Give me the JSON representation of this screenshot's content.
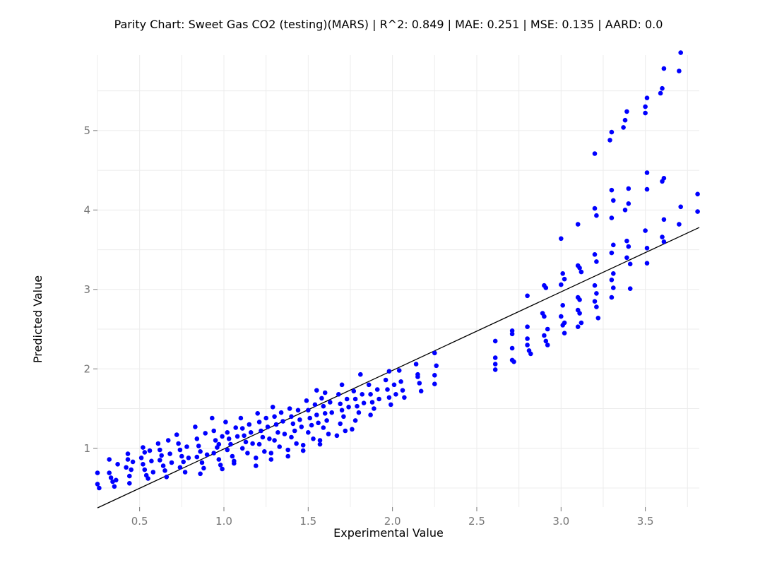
{
  "chart_data": {
    "type": "scatter",
    "title": "Parity Chart: Sweet Gas CO2 (testing)(MARS) | R^2: 0.849 | MAE: 0.251 | MSE: 0.135 | AARD: 0.0",
    "xlabel": "Experimental Value",
    "ylabel": "Predicted Value",
    "xlim": [
      0.25,
      3.82
    ],
    "ylim": [
      0.26,
      5.95
    ],
    "x_ticks": [
      0.5,
      1.0,
      1.5,
      2.0,
      2.5,
      3.0,
      3.5
    ],
    "x_tick_labels": [
      "0.5",
      "1.0",
      "1.5",
      "2.0",
      "2.5",
      "3.0",
      "3.5"
    ],
    "y_ticks": [
      1,
      2,
      3,
      4,
      5
    ],
    "y_tick_labels": [
      "1",
      "2",
      "3",
      "4",
      "5"
    ],
    "grid": true,
    "point_color": "#0000ff",
    "parity_line": {
      "from": [
        0.25,
        0.25
      ],
      "to": [
        3.82,
        3.78
      ],
      "color": "#000000"
    },
    "points": [
      [
        0.25,
        0.69
      ],
      [
        0.25,
        0.55
      ],
      [
        0.26,
        0.5
      ],
      [
        0.32,
        0.86
      ],
      [
        0.32,
        0.69
      ],
      [
        0.33,
        0.63
      ],
      [
        0.34,
        0.58
      ],
      [
        0.35,
        0.52
      ],
      [
        0.36,
        0.6
      ],
      [
        0.37,
        0.8
      ],
      [
        0.43,
        0.93
      ],
      [
        0.43,
        0.86
      ],
      [
        0.42,
        0.76
      ],
      [
        0.44,
        0.65
      ],
      [
        0.44,
        0.56
      ],
      [
        0.45,
        0.73
      ],
      [
        0.46,
        0.83
      ],
      [
        0.52,
        1.01
      ],
      [
        0.53,
        0.95
      ],
      [
        0.51,
        0.88
      ],
      [
        0.52,
        0.8
      ],
      [
        0.53,
        0.73
      ],
      [
        0.54,
        0.66
      ],
      [
        0.55,
        0.62
      ],
      [
        0.56,
        0.97
      ],
      [
        0.57,
        0.84
      ],
      [
        0.58,
        0.7
      ],
      [
        0.61,
        1.06
      ],
      [
        0.62,
        0.98
      ],
      [
        0.63,
        0.91
      ],
      [
        0.62,
        0.85
      ],
      [
        0.64,
        0.78
      ],
      [
        0.65,
        0.72
      ],
      [
        0.66,
        0.64
      ],
      [
        0.67,
        1.1
      ],
      [
        0.68,
        0.93
      ],
      [
        0.69,
        0.82
      ],
      [
        0.72,
        1.17
      ],
      [
        0.73,
        1.06
      ],
      [
        0.74,
        0.98
      ],
      [
        0.75,
        0.9
      ],
      [
        0.76,
        0.83
      ],
      [
        0.74,
        0.76
      ],
      [
        0.77,
        0.7
      ],
      [
        0.78,
        1.02
      ],
      [
        0.79,
        0.88
      ],
      [
        0.83,
        1.27
      ],
      [
        0.84,
        1.12
      ],
      [
        0.85,
        1.03
      ],
      [
        0.86,
        0.96
      ],
      [
        0.84,
        0.89
      ],
      [
        0.87,
        0.82
      ],
      [
        0.88,
        0.75
      ],
      [
        0.86,
        0.68
      ],
      [
        0.89,
        1.19
      ],
      [
        0.9,
        0.92
      ],
      [
        0.93,
        1.38
      ],
      [
        0.94,
        1.22
      ],
      [
        0.95,
        1.1
      ],
      [
        0.96,
        1.01
      ],
      [
        0.94,
        0.94
      ],
      [
        0.97,
        0.86
      ],
      [
        0.98,
        0.79
      ],
      [
        0.99,
        1.15
      ],
      [
        0.97,
        1.05
      ],
      [
        0.99,
        0.74
      ],
      [
        1.01,
        1.33
      ],
      [
        1.02,
        1.2
      ],
      [
        1.03,
        1.12
      ],
      [
        1.04,
        1.05
      ],
      [
        1.02,
        0.98
      ],
      [
        1.05,
        0.9
      ],
      [
        1.06,
        0.84
      ],
      [
        1.07,
        1.26
      ],
      [
        1.08,
        1.15
      ],
      [
        1.06,
        0.81
      ],
      [
        1.1,
        1.38
      ],
      [
        1.11,
        1.25
      ],
      [
        1.12,
        1.16
      ],
      [
        1.13,
        1.08
      ],
      [
        1.11,
        1.0
      ],
      [
        1.14,
        0.94
      ],
      [
        1.15,
        1.3
      ],
      [
        1.16,
        1.2
      ],
      [
        1.17,
        1.06
      ],
      [
        1.2,
        1.44
      ],
      [
        1.21,
        1.33
      ],
      [
        1.22,
        1.22
      ],
      [
        1.23,
        1.14
      ],
      [
        1.21,
        1.05
      ],
      [
        1.24,
        0.96
      ],
      [
        1.19,
        0.88
      ],
      [
        1.19,
        0.78
      ],
      [
        1.25,
        1.38
      ],
      [
        1.26,
        1.27
      ],
      [
        1.27,
        1.12
      ],
      [
        1.29,
        1.52
      ],
      [
        1.3,
        1.4
      ],
      [
        1.31,
        1.3
      ],
      [
        1.32,
        1.2
      ],
      [
        1.3,
        1.1
      ],
      [
        1.33,
        1.02
      ],
      [
        1.28,
        0.94
      ],
      [
        1.28,
        0.86
      ],
      [
        1.34,
        1.45
      ],
      [
        1.35,
        1.34
      ],
      [
        1.36,
        1.18
      ],
      [
        1.39,
        1.5
      ],
      [
        1.4,
        1.4
      ],
      [
        1.41,
        1.31
      ],
      [
        1.42,
        1.22
      ],
      [
        1.4,
        1.14
      ],
      [
        1.43,
        1.06
      ],
      [
        1.38,
        0.98
      ],
      [
        1.38,
        0.9
      ],
      [
        1.44,
        1.48
      ],
      [
        1.45,
        1.36
      ],
      [
        1.46,
        1.27
      ],
      [
        1.49,
        1.6
      ],
      [
        1.5,
        1.48
      ],
      [
        1.51,
        1.38
      ],
      [
        1.52,
        1.29
      ],
      [
        1.5,
        1.2
      ],
      [
        1.53,
        1.12
      ],
      [
        1.47,
        1.04
      ],
      [
        1.47,
        0.97
      ],
      [
        1.54,
        1.55
      ],
      [
        1.55,
        1.42
      ],
      [
        1.56,
        1.32
      ],
      [
        1.55,
        1.73
      ],
      [
        1.58,
        1.63
      ],
      [
        1.59,
        1.53
      ],
      [
        1.6,
        1.44
      ],
      [
        1.61,
        1.35
      ],
      [
        1.59,
        1.26
      ],
      [
        1.62,
        1.18
      ],
      [
        1.57,
        1.1
      ],
      [
        1.57,
        1.05
      ],
      [
        1.63,
        1.58
      ],
      [
        1.64,
        1.45
      ],
      [
        1.6,
        1.7
      ],
      [
        1.68,
        1.68
      ],
      [
        1.69,
        1.56
      ],
      [
        1.7,
        1.48
      ],
      [
        1.71,
        1.4
      ],
      [
        1.69,
        1.31
      ],
      [
        1.72,
        1.22
      ],
      [
        1.67,
        1.16
      ],
      [
        1.73,
        1.62
      ],
      [
        1.74,
        1.52
      ],
      [
        1.7,
        1.8
      ],
      [
        1.77,
        1.72
      ],
      [
        1.78,
        1.62
      ],
      [
        1.79,
        1.53
      ],
      [
        1.8,
        1.45
      ],
      [
        1.78,
        1.35
      ],
      [
        1.76,
        1.24
      ],
      [
        1.82,
        1.68
      ],
      [
        1.83,
        1.57
      ],
      [
        1.81,
        1.93
      ],
      [
        1.86,
        1.8
      ],
      [
        1.87,
        1.68
      ],
      [
        1.88,
        1.58
      ],
      [
        1.89,
        1.5
      ],
      [
        1.87,
        1.42
      ],
      [
        1.91,
        1.74
      ],
      [
        1.92,
        1.62
      ],
      [
        1.96,
        1.86
      ],
      [
        1.97,
        1.74
      ],
      [
        1.98,
        1.64
      ],
      [
        1.99,
        1.55
      ],
      [
        1.98,
        1.97
      ],
      [
        2.01,
        1.8
      ],
      [
        2.02,
        1.68
      ],
      [
        2.04,
        1.98
      ],
      [
        2.05,
        1.84
      ],
      [
        2.06,
        1.73
      ],
      [
        2.07,
        1.64
      ],
      [
        2.14,
        2.06
      ],
      [
        2.15,
        1.93
      ],
      [
        2.16,
        1.82
      ],
      [
        2.17,
        1.72
      ],
      [
        2.15,
        1.9
      ],
      [
        2.25,
        2.2
      ],
      [
        2.26,
        2.04
      ],
      [
        2.25,
        1.92
      ],
      [
        2.25,
        1.81
      ],
      [
        2.61,
        2.35
      ],
      [
        2.61,
        2.14
      ],
      [
        2.61,
        2.06
      ],
      [
        2.61,
        1.99
      ],
      [
        2.71,
        2.48
      ],
      [
        2.71,
        2.44
      ],
      [
        2.71,
        2.26
      ],
      [
        2.71,
        2.11
      ],
      [
        2.72,
        2.09
      ],
      [
        2.8,
        2.92
      ],
      [
        2.8,
        2.53
      ],
      [
        2.8,
        2.38
      ],
      [
        2.8,
        2.3
      ],
      [
        2.81,
        2.23
      ],
      [
        2.82,
        2.19
      ],
      [
        2.9,
        3.05
      ],
      [
        2.91,
        3.02
      ],
      [
        2.89,
        2.7
      ],
      [
        2.9,
        2.66
      ],
      [
        2.92,
        2.5
      ],
      [
        2.9,
        2.42
      ],
      [
        2.91,
        2.35
      ],
      [
        2.92,
        2.3
      ],
      [
        3.0,
        3.64
      ],
      [
        3.01,
        3.2
      ],
      [
        3.02,
        3.13
      ],
      [
        3.0,
        3.06
      ],
      [
        3.01,
        2.8
      ],
      [
        3.0,
        2.66
      ],
      [
        3.02,
        2.58
      ],
      [
        3.01,
        2.55
      ],
      [
        3.02,
        2.45
      ],
      [
        3.1,
        3.82
      ],
      [
        3.1,
        3.3
      ],
      [
        3.11,
        3.27
      ],
      [
        3.12,
        3.22
      ],
      [
        3.1,
        2.9
      ],
      [
        3.11,
        2.87
      ],
      [
        3.1,
        2.74
      ],
      [
        3.11,
        2.7
      ],
      [
        3.12,
        2.58
      ],
      [
        3.1,
        2.53
      ],
      [
        3.2,
        4.71
      ],
      [
        3.2,
        4.02
      ],
      [
        3.21,
        3.93
      ],
      [
        3.2,
        3.44
      ],
      [
        3.21,
        3.35
      ],
      [
        3.2,
        3.05
      ],
      [
        3.21,
        2.95
      ],
      [
        3.2,
        2.85
      ],
      [
        3.21,
        2.78
      ],
      [
        3.22,
        2.64
      ],
      [
        3.3,
        4.98
      ],
      [
        3.29,
        4.88
      ],
      [
        3.3,
        4.25
      ],
      [
        3.31,
        4.12
      ],
      [
        3.3,
        3.9
      ],
      [
        3.31,
        3.56
      ],
      [
        3.3,
        3.46
      ],
      [
        3.31,
        3.2
      ],
      [
        3.3,
        3.12
      ],
      [
        3.31,
        3.02
      ],
      [
        3.3,
        2.9
      ],
      [
        3.39,
        5.24
      ],
      [
        3.38,
        5.13
      ],
      [
        3.37,
        5.04
      ],
      [
        3.4,
        4.27
      ],
      [
        3.4,
        4.08
      ],
      [
        3.38,
        4.0
      ],
      [
        3.39,
        3.61
      ],
      [
        3.4,
        3.54
      ],
      [
        3.39,
        3.4
      ],
      [
        3.41,
        3.32
      ],
      [
        3.41,
        3.01
      ],
      [
        3.51,
        5.41
      ],
      [
        3.5,
        5.3
      ],
      [
        3.5,
        5.22
      ],
      [
        3.51,
        4.47
      ],
      [
        3.51,
        4.26
      ],
      [
        3.5,
        3.74
      ],
      [
        3.51,
        3.52
      ],
      [
        3.51,
        3.33
      ],
      [
        3.59,
        5.47
      ],
      [
        3.6,
        5.53
      ],
      [
        3.61,
        5.78
      ],
      [
        3.61,
        4.4
      ],
      [
        3.6,
        4.36
      ],
      [
        3.61,
        3.88
      ],
      [
        3.6,
        3.66
      ],
      [
        3.61,
        3.6
      ],
      [
        3.71,
        5.98
      ],
      [
        3.7,
        5.75
      ],
      [
        3.71,
        4.04
      ],
      [
        3.7,
        3.82
      ],
      [
        3.81,
        4.2
      ],
      [
        3.81,
        3.98
      ]
    ]
  }
}
